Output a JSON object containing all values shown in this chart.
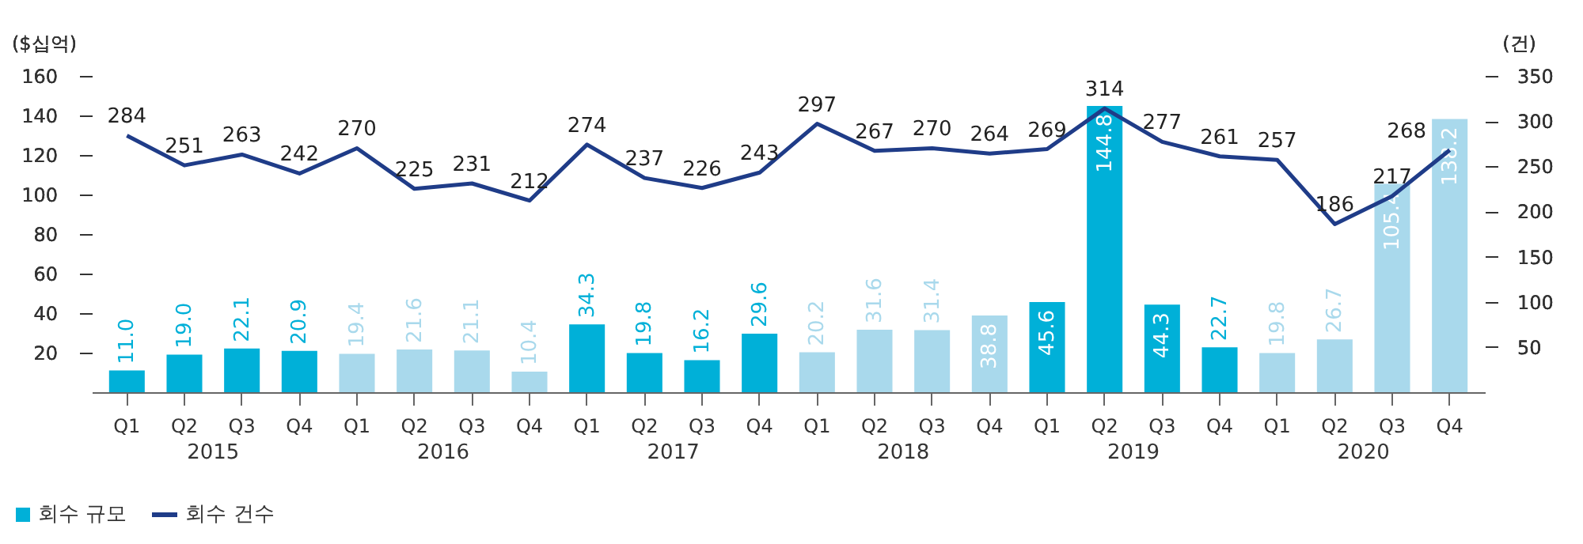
{
  "chart_data": {
    "type": "bar",
    "ylabel": "($십억)",
    "y2label": "(건)",
    "categories": [
      "Q1",
      "Q2",
      "Q3",
      "Q4",
      "Q1",
      "Q2",
      "Q3",
      "Q4",
      "Q1",
      "Q2",
      "Q3",
      "Q4",
      "Q1",
      "Q2",
      "Q3",
      "Q4",
      "Q1",
      "Q2",
      "Q3",
      "Q4",
      "Q1",
      "Q2",
      "Q3",
      "Q4"
    ],
    "annotations": [
      "2015",
      "2016",
      "2017",
      "2018",
      "2019",
      "2020"
    ],
    "ylim": [
      0,
      160
    ],
    "yticks": [
      20,
      40,
      60,
      80,
      100,
      120,
      140,
      160
    ],
    "y2lim": [
      0,
      350
    ],
    "y2ticks": [
      50,
      100,
      150,
      200,
      250,
      300,
      350
    ],
    "grid": false,
    "legend": "bottom left",
    "data_labels": true,
    "series": [
      {
        "name": "회수 규모",
        "color": "#00b0d8",
        "colors": [
          "#00b0d8",
          "#00b0d8",
          "#00b0d8",
          "#00b0d8",
          "#a9d9ec",
          "#a9d9ec",
          "#a9d9ec",
          "#a9d9ec",
          "#00b0d8",
          "#00b0d8",
          "#00b0d8",
          "#00b0d8",
          "#a9d9ec",
          "#a9d9ec",
          "#a9d9ec",
          "#a9d9ec",
          "#00b0d8",
          "#00b0d8",
          "#00b0d8",
          "#00b0d8",
          "#a9d9ec",
          "#a9d9ec",
          "#a9d9ec",
          "#a9d9ec"
        ],
        "values": [
          11.0,
          19.0,
          22.1,
          20.9,
          19.4,
          21.6,
          21.1,
          10.4,
          34.3,
          19.8,
          16.2,
          29.6,
          20.2,
          31.6,
          31.4,
          38.8,
          45.6,
          144.8,
          44.3,
          22.7,
          19.8,
          26.7,
          105.4,
          138.2
        ],
        "value_labels": [
          "11.0",
          "19.0",
          "22.1",
          "20.9",
          "19.4",
          "21.6",
          "21.1",
          "10.4",
          "34.3",
          "19.8",
          "16.2",
          "29.6",
          "20.2",
          "31.6",
          "31.4",
          "38.8",
          "45.6",
          "144.8",
          "44.3",
          "22.7",
          "19.8",
          "26.7",
          "105.4",
          "138.2"
        ]
      },
      {
        "name": "회수 건수",
        "type": "line",
        "axis": "y2",
        "color": "#1f3c88",
        "values": [
          284,
          251,
          263,
          242,
          270,
          225,
          231,
          212,
          274,
          237,
          226,
          243,
          297,
          267,
          270,
          264,
          269,
          314,
          277,
          261,
          257,
          186,
          217,
          268
        ]
      }
    ]
  }
}
